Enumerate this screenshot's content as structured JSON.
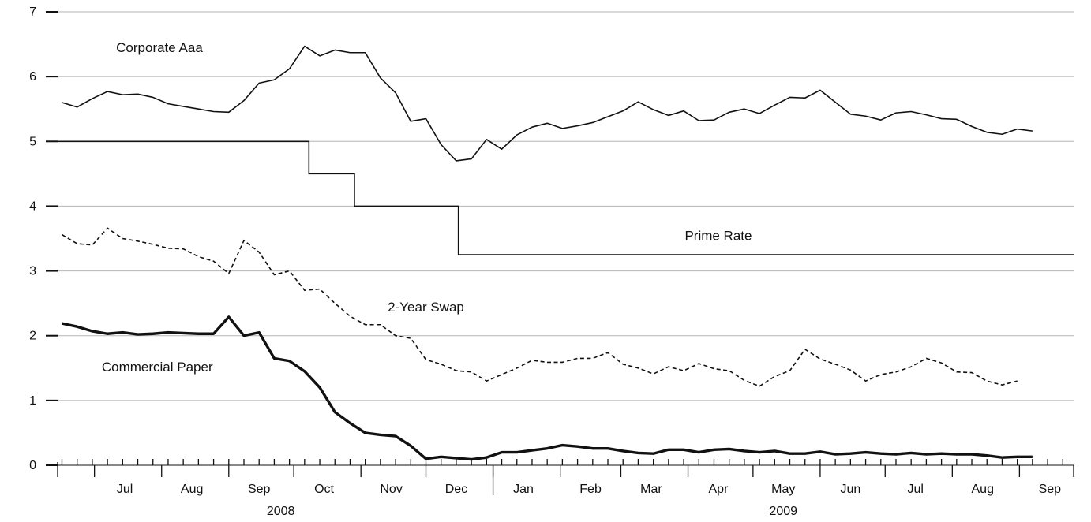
{
  "chart_data": {
    "type": "line",
    "title": "",
    "xlabel": "",
    "ylabel": "",
    "ylim": [
      0,
      7
    ],
    "yticks": [
      0,
      1,
      2,
      3,
      4,
      5,
      6,
      7
    ],
    "y_tick_labels": [
      "0",
      "1",
      "2",
      "3",
      "4",
      "5",
      "6",
      "7"
    ],
    "grid": "horizontal",
    "x_unit": "week",
    "x_range": [
      "2008-06-14",
      "2009-09-26"
    ],
    "month_labels": [
      {
        "label": "Jul",
        "date": "2008-07-15"
      },
      {
        "label": "Aug",
        "date": "2008-08-15"
      },
      {
        "label": "Sep",
        "date": "2008-09-15"
      },
      {
        "label": "Oct",
        "date": "2008-10-15"
      },
      {
        "label": "Nov",
        "date": "2008-11-15"
      },
      {
        "label": "Dec",
        "date": "2008-12-15"
      },
      {
        "label": "Jan",
        "date": "2009-01-15"
      },
      {
        "label": "Feb",
        "date": "2009-02-15"
      },
      {
        "label": "Mar",
        "date": "2009-03-15"
      },
      {
        "label": "Apr",
        "date": "2009-04-15"
      },
      {
        "label": "May",
        "date": "2009-05-15"
      },
      {
        "label": "Jun",
        "date": "2009-06-15"
      },
      {
        "label": "Jul",
        "date": "2009-07-15"
      },
      {
        "label": "Aug",
        "date": "2009-08-15"
      },
      {
        "label": "Sep",
        "date": "2009-09-15"
      }
    ],
    "month_boundaries": [
      "2008-07-01",
      "2008-08-01",
      "2008-09-01",
      "2008-10-01",
      "2008-11-01",
      "2008-12-01",
      "2009-01-01",
      "2009-02-01",
      "2009-03-01",
      "2009-04-01",
      "2009-05-01",
      "2009-06-01",
      "2009-07-01",
      "2009-08-01",
      "2009-09-01"
    ],
    "year_labels": [
      {
        "label": "2008",
        "date": "2008-09-25"
      },
      {
        "label": "2009",
        "date": "2009-05-15"
      }
    ],
    "year_separator": "2009-01-01",
    "series": [
      {
        "name": "Corporate Aaa",
        "style": "solid",
        "label_value": [
          6.45,
          2008,
          7,
          12
        ],
        "points": [
          [
            "2008-06-16",
            5.6
          ],
          [
            "2008-06-23",
            5.53
          ],
          [
            "2008-06-30",
            5.66
          ],
          [
            "2008-07-07",
            5.77
          ],
          [
            "2008-07-14",
            5.72
          ],
          [
            "2008-07-21",
            5.73
          ],
          [
            "2008-07-28",
            5.68
          ],
          [
            "2008-08-04",
            5.58
          ],
          [
            "2008-08-11",
            5.54
          ],
          [
            "2008-08-18",
            5.5
          ],
          [
            "2008-08-25",
            5.46
          ],
          [
            "2008-09-01",
            5.45
          ],
          [
            "2008-09-08",
            5.63
          ],
          [
            "2008-09-15",
            5.9
          ],
          [
            "2008-09-22",
            5.95
          ],
          [
            "2008-09-29",
            6.12
          ],
          [
            "2008-10-06",
            6.47
          ],
          [
            "2008-10-13",
            6.32
          ],
          [
            "2008-10-20",
            6.41
          ],
          [
            "2008-10-27",
            6.37
          ],
          [
            "2008-11-03",
            6.37
          ],
          [
            "2008-11-10",
            5.98
          ],
          [
            "2008-11-17",
            5.75
          ],
          [
            "2008-11-24",
            5.31
          ],
          [
            "2008-12-01",
            5.35
          ],
          [
            "2008-12-08",
            4.95
          ],
          [
            "2008-12-15",
            4.7
          ],
          [
            "2008-12-22",
            4.73
          ],
          [
            "2008-12-29",
            5.03
          ],
          [
            "2009-01-05",
            4.88
          ],
          [
            "2009-01-12",
            5.1
          ],
          [
            "2009-01-19",
            5.22
          ],
          [
            "2009-01-26",
            5.28
          ],
          [
            "2009-02-02",
            5.2
          ],
          [
            "2009-02-09",
            5.24
          ],
          [
            "2009-02-16",
            5.29
          ],
          [
            "2009-03-02",
            5.47
          ],
          [
            "2009-03-09",
            5.61
          ],
          [
            "2009-03-16",
            5.49
          ],
          [
            "2009-03-23",
            5.4
          ],
          [
            "2009-03-30",
            5.47
          ],
          [
            "2009-04-06",
            5.32
          ],
          [
            "2009-04-13",
            5.33
          ],
          [
            "2009-04-20",
            5.45
          ],
          [
            "2009-04-27",
            5.5
          ],
          [
            "2009-05-04",
            5.43
          ],
          [
            "2009-05-11",
            5.56
          ],
          [
            "2009-05-18",
            5.68
          ],
          [
            "2009-05-25",
            5.67
          ],
          [
            "2009-06-01",
            5.79
          ],
          [
            "2009-06-15",
            5.42
          ],
          [
            "2009-06-22",
            5.39
          ],
          [
            "2009-06-29",
            5.33
          ],
          [
            "2009-07-06",
            5.44
          ],
          [
            "2009-07-13",
            5.46
          ],
          [
            "2009-07-20",
            5.41
          ],
          [
            "2009-07-27",
            5.35
          ],
          [
            "2009-08-03",
            5.34
          ],
          [
            "2009-08-10",
            5.23
          ],
          [
            "2009-08-17",
            5.14
          ],
          [
            "2009-08-24",
            5.11
          ],
          [
            "2009-08-31",
            5.19
          ],
          [
            "2009-09-07",
            5.16
          ]
        ]
      },
      {
        "name": "Prime Rate",
        "style": "step",
        "points": [
          [
            "2008-06-14",
            5.0
          ],
          [
            "2008-10-08",
            5.0
          ],
          [
            "2008-10-08",
            4.5
          ],
          [
            "2008-10-29",
            4.5
          ],
          [
            "2008-10-29",
            4.0
          ],
          [
            "2008-12-16",
            4.0
          ],
          [
            "2008-12-16",
            3.25
          ],
          [
            "2009-09-26",
            3.25
          ]
        ]
      },
      {
        "name": "2-Year Swap",
        "style": "dashed",
        "points": [
          [
            "2008-06-16",
            3.56
          ],
          [
            "2008-06-23",
            3.42
          ],
          [
            "2008-06-30",
            3.4
          ],
          [
            "2008-07-07",
            3.66
          ],
          [
            "2008-07-14",
            3.5
          ],
          [
            "2008-07-21",
            3.46
          ],
          [
            "2008-07-28",
            3.41
          ],
          [
            "2008-08-04",
            3.35
          ],
          [
            "2008-08-11",
            3.34
          ],
          [
            "2008-08-18",
            3.22
          ],
          [
            "2008-08-25",
            3.15
          ],
          [
            "2008-09-01",
            2.96
          ],
          [
            "2008-09-08",
            3.47
          ],
          [
            "2008-09-15",
            3.29
          ],
          [
            "2008-09-22",
            2.94
          ],
          [
            "2008-09-29",
            3.0
          ],
          [
            "2008-10-06",
            2.7
          ],
          [
            "2008-10-13",
            2.72
          ],
          [
            "2008-10-20",
            2.5
          ],
          [
            "2008-10-27",
            2.3
          ],
          [
            "2008-11-03",
            2.17
          ],
          [
            "2008-11-10",
            2.17
          ],
          [
            "2008-11-17",
            2.0
          ],
          [
            "2008-11-24",
            1.96
          ],
          [
            "2008-12-01",
            1.63
          ],
          [
            "2008-12-08",
            1.56
          ],
          [
            "2008-12-15",
            1.46
          ],
          [
            "2008-12-22",
            1.44
          ],
          [
            "2008-12-29",
            1.3
          ],
          [
            "2009-01-05",
            1.4
          ],
          [
            "2009-01-12",
            1.5
          ],
          [
            "2009-01-19",
            1.62
          ],
          [
            "2009-01-26",
            1.59
          ],
          [
            "2009-02-02",
            1.59
          ],
          [
            "2009-02-09",
            1.65
          ],
          [
            "2009-02-16",
            1.65
          ],
          [
            "2009-02-23",
            1.74
          ],
          [
            "2009-03-02",
            1.56
          ],
          [
            "2009-03-09",
            1.5
          ],
          [
            "2009-03-16",
            1.41
          ],
          [
            "2009-03-23",
            1.52
          ],
          [
            "2009-03-30",
            1.46
          ],
          [
            "2009-04-06",
            1.57
          ],
          [
            "2009-04-13",
            1.49
          ],
          [
            "2009-04-20",
            1.46
          ],
          [
            "2009-04-27",
            1.31
          ],
          [
            "2009-05-04",
            1.22
          ],
          [
            "2009-05-11",
            1.37
          ],
          [
            "2009-05-18",
            1.46
          ],
          [
            "2009-05-25",
            1.79
          ],
          [
            "2009-06-01",
            1.64
          ],
          [
            "2009-06-08",
            1.56
          ],
          [
            "2009-06-15",
            1.47
          ],
          [
            "2009-06-22",
            1.3
          ],
          [
            "2009-06-29",
            1.4
          ],
          [
            "2009-07-06",
            1.44
          ],
          [
            "2009-07-13",
            1.52
          ],
          [
            "2009-07-20",
            1.65
          ],
          [
            "2009-07-27",
            1.58
          ],
          [
            "2009-08-03",
            1.44
          ],
          [
            "2009-08-10",
            1.43
          ],
          [
            "2009-08-17",
            1.3
          ],
          [
            "2009-08-24",
            1.24
          ],
          [
            "2009-08-31",
            1.3
          ]
        ]
      },
      {
        "name": "Commercial Paper",
        "style": "bold",
        "points": [
          [
            "2008-06-16",
            2.19
          ],
          [
            "2008-06-23",
            2.14
          ],
          [
            "2008-06-30",
            2.07
          ],
          [
            "2008-07-07",
            2.03
          ],
          [
            "2008-07-14",
            2.05
          ],
          [
            "2008-07-21",
            2.02
          ],
          [
            "2008-07-28",
            2.03
          ],
          [
            "2008-08-04",
            2.05
          ],
          [
            "2008-08-11",
            2.04
          ],
          [
            "2008-08-18",
            2.03
          ],
          [
            "2008-08-25",
            2.03
          ],
          [
            "2008-09-01",
            2.29
          ],
          [
            "2008-09-08",
            2.0
          ],
          [
            "2008-09-15",
            2.05
          ],
          [
            "2008-09-22",
            1.65
          ],
          [
            "2008-09-29",
            1.61
          ],
          [
            "2008-10-06",
            1.45
          ],
          [
            "2008-10-13",
            1.2
          ],
          [
            "2008-10-20",
            0.82
          ],
          [
            "2008-10-27",
            0.65
          ],
          [
            "2008-11-03",
            0.5
          ],
          [
            "2008-11-10",
            0.47
          ],
          [
            "2008-11-17",
            0.45
          ],
          [
            "2008-11-24",
            0.3
          ],
          [
            "2008-12-01",
            0.1
          ],
          [
            "2008-12-08",
            0.13
          ],
          [
            "2008-12-15",
            0.11
          ],
          [
            "2008-12-22",
            0.09
          ],
          [
            "2008-12-29",
            0.12
          ],
          [
            "2009-01-05",
            0.2
          ],
          [
            "2009-01-12",
            0.2
          ],
          [
            "2009-01-19",
            0.23
          ],
          [
            "2009-01-26",
            0.26
          ],
          [
            "2009-02-02",
            0.31
          ],
          [
            "2009-02-09",
            0.29
          ],
          [
            "2009-02-16",
            0.26
          ],
          [
            "2009-02-23",
            0.26
          ],
          [
            "2009-03-02",
            0.22
          ],
          [
            "2009-03-09",
            0.19
          ],
          [
            "2009-03-16",
            0.18
          ],
          [
            "2009-03-23",
            0.24
          ],
          [
            "2009-03-30",
            0.24
          ],
          [
            "2009-04-06",
            0.2
          ],
          [
            "2009-04-13",
            0.24
          ],
          [
            "2009-04-20",
            0.25
          ],
          [
            "2009-04-27",
            0.22
          ],
          [
            "2009-05-04",
            0.2
          ],
          [
            "2009-05-11",
            0.22
          ],
          [
            "2009-05-18",
            0.18
          ],
          [
            "2009-05-25",
            0.18
          ],
          [
            "2009-06-01",
            0.21
          ],
          [
            "2009-06-08",
            0.17
          ],
          [
            "2009-06-15",
            0.18
          ],
          [
            "2009-06-22",
            0.2
          ],
          [
            "2009-06-29",
            0.18
          ],
          [
            "2009-07-06",
            0.17
          ],
          [
            "2009-07-13",
            0.19
          ],
          [
            "2009-07-20",
            0.17
          ],
          [
            "2009-07-27",
            0.18
          ],
          [
            "2009-08-03",
            0.17
          ],
          [
            "2009-08-10",
            0.17
          ],
          [
            "2009-08-17",
            0.15
          ],
          [
            "2009-08-24",
            0.12
          ],
          [
            "2009-08-31",
            0.13
          ],
          [
            "2009-09-07",
            0.13
          ]
        ]
      }
    ],
    "annotations": [
      {
        "text": "Corporate Aaa",
        "x": "2008-07-31",
        "y": 6.45
      },
      {
        "text": "Prime Rate",
        "x": "2009-04-15",
        "y": 3.55
      },
      {
        "text": "2-Year Swap",
        "x": "2008-12-01",
        "y": 2.45
      },
      {
        "text": "Commercial Paper",
        "x": "2008-07-30",
        "y": 1.52
      }
    ]
  }
}
